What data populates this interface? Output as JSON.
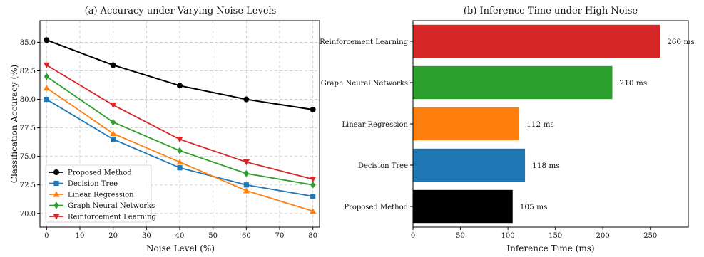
{
  "chart_data": [
    {
      "type": "line",
      "title": "(a) Accuracy under Varying Noise Levels",
      "xlabel": "Noise Level (%)",
      "ylabel": "Classification Accuracy (%)",
      "x": [
        0,
        20,
        40,
        60,
        80
      ],
      "xlim": [
        -2,
        82
      ],
      "ylim": [
        68.8,
        86.9
      ],
      "xticks": [
        "0",
        "10",
        "20",
        "30",
        "40",
        "50",
        "60",
        "70",
        "80"
      ],
      "yticks": [
        "70.0",
        "72.5",
        "75.0",
        "77.5",
        "80.0",
        "82.5",
        "85.0"
      ],
      "grid": true,
      "legend_position": "lower-left",
      "series": [
        {
          "name": "Proposed Method",
          "marker": "circle",
          "color": "#000000",
          "values": [
            85.2,
            83.0,
            81.2,
            80.0,
            79.1
          ]
        },
        {
          "name": "Decision Tree",
          "marker": "square",
          "color": "#1f77b4",
          "values": [
            80.0,
            76.5,
            74.0,
            72.5,
            71.5
          ]
        },
        {
          "name": "Linear Regression",
          "marker": "triangle-up",
          "color": "#ff7f0e",
          "values": [
            81.0,
            77.0,
            74.5,
            72.0,
            70.2
          ]
        },
        {
          "name": "Graph Neural Networks",
          "marker": "diamond",
          "color": "#2ca02c",
          "values": [
            82.0,
            78.0,
            75.5,
            73.5,
            72.5
          ]
        },
        {
          "name": "Reinforcement Learning",
          "marker": "triangle-down",
          "color": "#d62728",
          "values": [
            83.0,
            79.5,
            76.5,
            74.5,
            73.0
          ]
        }
      ]
    },
    {
      "type": "bar",
      "orientation": "horizontal",
      "title": "(b) Inference Time under High Noise",
      "xlabel": "Inference Time (ms)",
      "ylabel": "",
      "xlim": [
        0,
        290
      ],
      "xticks": [
        "0",
        "50",
        "100",
        "150",
        "200",
        "250"
      ],
      "categories": [
        "Reinforcement Learning",
        "Graph Neural Networks",
        "Linear Regression",
        "Decision Tree",
        "Proposed Method"
      ],
      "values": [
        260,
        210,
        112,
        118,
        105
      ],
      "value_labels": [
        "260 ms",
        "210 ms",
        "112 ms",
        "118 ms",
        "105 ms"
      ],
      "colors": [
        "#d62728",
        "#2ca02c",
        "#ff7f0e",
        "#1f77b4",
        "#000000"
      ]
    }
  ]
}
